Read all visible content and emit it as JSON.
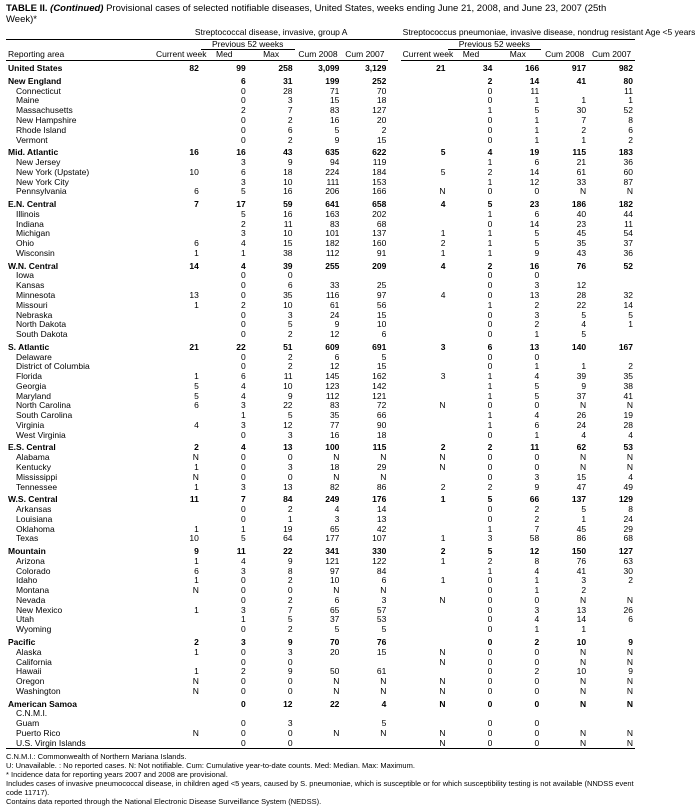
{
  "title_prefix": "TABLE II. ",
  "title_cont": "(Continued)",
  "title_rest": " Provisional cases of selected notifiable diseases, United States, weeks ending June 21, 2008, and June 23, 2007 (25th Week)*",
  "disease_a": "Streptococcal disease, invasive, group A",
  "disease_b": "Streptococcus pneumoniae, invasive disease, nondrug resistant Age <5 years",
  "hdr": {
    "area": "Reporting area",
    "current": "Current week",
    "prev": "Previous 52 weeks",
    "med": "Med",
    "max": "Max",
    "cum08": "Cum 2008",
    "cum07": "Cum 2007"
  },
  "dash": "",
  "sections": [
    {
      "head": "United States",
      "bold": true,
      "a": [
        "82",
        "99",
        "258",
        "3,099",
        "3,129"
      ],
      "b": [
        "21",
        "34",
        "166",
        "917",
        "982"
      ]
    },
    {
      "head": "New England",
      "a": [
        "",
        "6",
        "31",
        "199",
        "252"
      ],
      "b": [
        "",
        "2",
        "14",
        "41",
        "80"
      ]
    },
    {
      "rows": [
        {
          "n": "Connecticut",
          "a": [
            "",
            "0",
            "28",
            "71",
            "70"
          ],
          "b": [
            "",
            "0",
            "11",
            "",
            "11"
          ]
        },
        {
          "n": "Maine",
          "a": [
            "",
            "0",
            "3",
            "15",
            "18"
          ],
          "b": [
            "",
            "0",
            "1",
            "1",
            "1"
          ]
        },
        {
          "n": "Massachusetts",
          "a": [
            "",
            "2",
            "7",
            "83",
            "127"
          ],
          "b": [
            "",
            "1",
            "5",
            "30",
            "52"
          ]
        },
        {
          "n": "New Hampshire",
          "a": [
            "",
            "0",
            "2",
            "16",
            "20"
          ],
          "b": [
            "",
            "0",
            "1",
            "7",
            "8"
          ]
        },
        {
          "n": "Rhode Island",
          "a": [
            "",
            "0",
            "6",
            "5",
            "2"
          ],
          "b": [
            "",
            "0",
            "1",
            "2",
            "6"
          ]
        },
        {
          "n": "Vermont",
          "a": [
            "",
            "0",
            "2",
            "9",
            "15"
          ],
          "b": [
            "",
            "0",
            "1",
            "1",
            "2"
          ]
        }
      ]
    },
    {
      "head": "Mid. Atlantic",
      "a": [
        "16",
        "16",
        "43",
        "635",
        "622"
      ],
      "b": [
        "5",
        "4",
        "19",
        "115",
        "183"
      ]
    },
    {
      "rows": [
        {
          "n": "New Jersey",
          "a": [
            "",
            "3",
            "9",
            "94",
            "119"
          ],
          "b": [
            "",
            "1",
            "6",
            "21",
            "36"
          ]
        },
        {
          "n": "New York (Upstate)",
          "a": [
            "10",
            "6",
            "18",
            "224",
            "184"
          ],
          "b": [
            "5",
            "2",
            "14",
            "61",
            "60"
          ]
        },
        {
          "n": "New York City",
          "a": [
            "",
            "3",
            "10",
            "111",
            "153"
          ],
          "b": [
            "",
            "1",
            "12",
            "33",
            "87"
          ]
        },
        {
          "n": "Pennsylvania",
          "a": [
            "6",
            "5",
            "16",
            "206",
            "166"
          ],
          "b": [
            "N",
            "0",
            "0",
            "N",
            "N"
          ]
        }
      ]
    },
    {
      "head": "E.N. Central",
      "a": [
        "7",
        "17",
        "59",
        "641",
        "658"
      ],
      "b": [
        "4",
        "5",
        "23",
        "186",
        "182"
      ]
    },
    {
      "rows": [
        {
          "n": "Illinois",
          "a": [
            "",
            "5",
            "16",
            "163",
            "202"
          ],
          "b": [
            "",
            "1",
            "6",
            "40",
            "44"
          ]
        },
        {
          "n": "Indiana",
          "a": [
            "",
            "2",
            "11",
            "83",
            "68"
          ],
          "b": [
            "",
            "0",
            "14",
            "23",
            "11"
          ]
        },
        {
          "n": "Michigan",
          "a": [
            "",
            "3",
            "10",
            "101",
            "137"
          ],
          "b": [
            "1",
            "1",
            "5",
            "45",
            "54"
          ]
        },
        {
          "n": "Ohio",
          "a": [
            "6",
            "4",
            "15",
            "182",
            "160"
          ],
          "b": [
            "2",
            "1",
            "5",
            "35",
            "37"
          ]
        },
        {
          "n": "Wisconsin",
          "a": [
            "1",
            "1",
            "38",
            "112",
            "91"
          ],
          "b": [
            "1",
            "1",
            "9",
            "43",
            "36"
          ]
        }
      ]
    },
    {
      "head": "W.N. Central",
      "a": [
        "14",
        "4",
        "39",
        "255",
        "209"
      ],
      "b": [
        "4",
        "2",
        "16",
        "76",
        "52"
      ]
    },
    {
      "rows": [
        {
          "n": "Iowa",
          "a": [
            "",
            "0",
            "0",
            "",
            ""
          ],
          "b": [
            "",
            "0",
            "0",
            "",
            ""
          ]
        },
        {
          "n": "Kansas",
          "a": [
            "",
            "0",
            "6",
            "33",
            "25"
          ],
          "b": [
            "",
            "0",
            "3",
            "12",
            ""
          ]
        },
        {
          "n": "Minnesota",
          "a": [
            "13",
            "0",
            "35",
            "116",
            "97"
          ],
          "b": [
            "4",
            "0",
            "13",
            "28",
            "32"
          ]
        },
        {
          "n": "Missouri",
          "a": [
            "1",
            "2",
            "10",
            "61",
            "56"
          ],
          "b": [
            "",
            "1",
            "2",
            "22",
            "14"
          ]
        },
        {
          "n": "Nebraska",
          "a": [
            "",
            "0",
            "3",
            "24",
            "15"
          ],
          "b": [
            "",
            "0",
            "3",
            "5",
            "5"
          ]
        },
        {
          "n": "North Dakota",
          "a": [
            "",
            "0",
            "5",
            "9",
            "10"
          ],
          "b": [
            "",
            "0",
            "2",
            "4",
            "1"
          ]
        },
        {
          "n": "South Dakota",
          "a": [
            "",
            "0",
            "2",
            "12",
            "6"
          ],
          "b": [
            "",
            "0",
            "1",
            "5",
            ""
          ]
        }
      ]
    },
    {
      "head": "S. Atlantic",
      "a": [
        "21",
        "22",
        "51",
        "609",
        "691"
      ],
      "b": [
        "3",
        "6",
        "13",
        "140",
        "167"
      ]
    },
    {
      "rows": [
        {
          "n": "Delaware",
          "a": [
            "",
            "0",
            "2",
            "6",
            "5"
          ],
          "b": [
            "",
            "0",
            "0",
            "",
            ""
          ]
        },
        {
          "n": "District of Columbia",
          "a": [
            "",
            "0",
            "2",
            "12",
            "15"
          ],
          "b": [
            "",
            "0",
            "1",
            "1",
            "2"
          ]
        },
        {
          "n": "Florida",
          "a": [
            "1",
            "6",
            "11",
            "145",
            "162"
          ],
          "b": [
            "3",
            "1",
            "4",
            "39",
            "35"
          ]
        },
        {
          "n": "Georgia",
          "a": [
            "5",
            "4",
            "10",
            "123",
            "142"
          ],
          "b": [
            "",
            "1",
            "5",
            "9",
            "38"
          ]
        },
        {
          "n": "Maryland",
          "a": [
            "5",
            "4",
            "9",
            "112",
            "121"
          ],
          "b": [
            "",
            "1",
            "5",
            "37",
            "41"
          ]
        },
        {
          "n": "North Carolina",
          "a": [
            "6",
            "3",
            "22",
            "83",
            "72"
          ],
          "b": [
            "N",
            "0",
            "0",
            "N",
            "N"
          ]
        },
        {
          "n": "South Carolina",
          "a": [
            "",
            "1",
            "5",
            "35",
            "66"
          ],
          "b": [
            "",
            "1",
            "4",
            "26",
            "19"
          ]
        },
        {
          "n": "Virginia",
          "a": [
            "4",
            "3",
            "12",
            "77",
            "90"
          ],
          "b": [
            "",
            "1",
            "6",
            "24",
            "28"
          ]
        },
        {
          "n": "West Virginia",
          "a": [
            "",
            "0",
            "3",
            "16",
            "18"
          ],
          "b": [
            "",
            "0",
            "1",
            "4",
            "4"
          ]
        }
      ]
    },
    {
      "head": "E.S. Central",
      "a": [
        "2",
        "4",
        "13",
        "100",
        "115"
      ],
      "b": [
        "2",
        "2",
        "11",
        "62",
        "53"
      ]
    },
    {
      "rows": [
        {
          "n": "Alabama",
          "a": [
            "N",
            "0",
            "0",
            "N",
            "N"
          ],
          "b": [
            "N",
            "0",
            "0",
            "N",
            "N"
          ]
        },
        {
          "n": "Kentucky",
          "a": [
            "1",
            "0",
            "3",
            "18",
            "29"
          ],
          "b": [
            "N",
            "0",
            "0",
            "N",
            "N"
          ]
        },
        {
          "n": "Mississippi",
          "a": [
            "N",
            "0",
            "0",
            "N",
            "N"
          ],
          "b": [
            "",
            "0",
            "3",
            "15",
            "4"
          ]
        },
        {
          "n": "Tennessee",
          "a": [
            "1",
            "3",
            "13",
            "82",
            "86"
          ],
          "b": [
            "2",
            "2",
            "9",
            "47",
            "49"
          ]
        }
      ]
    },
    {
      "head": "W.S. Central",
      "a": [
        "11",
        "7",
        "84",
        "249",
        "176"
      ],
      "b": [
        "1",
        "5",
        "66",
        "137",
        "129"
      ]
    },
    {
      "rows": [
        {
          "n": "Arkansas",
          "a": [
            "",
            "0",
            "2",
            "4",
            "14"
          ],
          "b": [
            "",
            "0",
            "2",
            "5",
            "8"
          ]
        },
        {
          "n": "Louisiana",
          "a": [
            "",
            "0",
            "1",
            "3",
            "13"
          ],
          "b": [
            "",
            "0",
            "2",
            "1",
            "24"
          ]
        },
        {
          "n": "Oklahoma",
          "a": [
            "1",
            "1",
            "19",
            "65",
            "42"
          ],
          "b": [
            "",
            "1",
            "7",
            "45",
            "29"
          ]
        },
        {
          "n": "Texas",
          "a": [
            "10",
            "5",
            "64",
            "177",
            "107"
          ],
          "b": [
            "1",
            "3",
            "58",
            "86",
            "68"
          ]
        }
      ]
    },
    {
      "head": "Mountain",
      "a": [
        "9",
        "11",
        "22",
        "341",
        "330"
      ],
      "b": [
        "2",
        "5",
        "12",
        "150",
        "127"
      ]
    },
    {
      "rows": [
        {
          "n": "Arizona",
          "a": [
            "1",
            "4",
            "9",
            "121",
            "122"
          ],
          "b": [
            "1",
            "2",
            "8",
            "76",
            "63"
          ]
        },
        {
          "n": "Colorado",
          "a": [
            "6",
            "3",
            "8",
            "97",
            "84"
          ],
          "b": [
            "",
            "1",
            "4",
            "41",
            "30"
          ]
        },
        {
          "n": "Idaho",
          "a": [
            "1",
            "0",
            "2",
            "10",
            "6"
          ],
          "b": [
            "1",
            "0",
            "1",
            "3",
            "2"
          ]
        },
        {
          "n": "Montana",
          "a": [
            "N",
            "0",
            "0",
            "N",
            "N"
          ],
          "b": [
            "",
            "0",
            "1",
            "2",
            ""
          ]
        },
        {
          "n": "Nevada",
          "a": [
            "",
            "0",
            "2",
            "6",
            "3"
          ],
          "b": [
            "N",
            "0",
            "0",
            "N",
            "N"
          ]
        },
        {
          "n": "New Mexico",
          "a": [
            "1",
            "3",
            "7",
            "65",
            "57"
          ],
          "b": [
            "",
            "0",
            "3",
            "13",
            "26"
          ]
        },
        {
          "n": "Utah",
          "a": [
            "",
            "1",
            "5",
            "37",
            "53"
          ],
          "b": [
            "",
            "0",
            "4",
            "14",
            "6"
          ]
        },
        {
          "n": "Wyoming",
          "a": [
            "",
            "0",
            "2",
            "5",
            "5"
          ],
          "b": [
            "",
            "0",
            "1",
            "1",
            ""
          ]
        }
      ]
    },
    {
      "head": "Pacific",
      "a": [
        "2",
        "3",
        "9",
        "70",
        "76"
      ],
      "b": [
        "",
        "0",
        "2",
        "10",
        "9"
      ]
    },
    {
      "rows": [
        {
          "n": "Alaska",
          "a": [
            "1",
            "0",
            "3",
            "20",
            "15"
          ],
          "b": [
            "N",
            "0",
            "0",
            "N",
            "N"
          ]
        },
        {
          "n": "California",
          "a": [
            "",
            "0",
            "0",
            "",
            ""
          ],
          "b": [
            "N",
            "0",
            "0",
            "N",
            "N"
          ]
        },
        {
          "n": "Hawaii",
          "a": [
            "1",
            "2",
            "9",
            "50",
            "61"
          ],
          "b": [
            "",
            "0",
            "2",
            "10",
            "9"
          ]
        },
        {
          "n": "Oregon",
          "a": [
            "N",
            "0",
            "0",
            "N",
            "N"
          ],
          "b": [
            "N",
            "0",
            "0",
            "N",
            "N"
          ]
        },
        {
          "n": "Washington",
          "a": [
            "N",
            "0",
            "0",
            "N",
            "N"
          ],
          "b": [
            "N",
            "0",
            "0",
            "N",
            "N"
          ]
        }
      ]
    },
    {
      "head": "American Samoa",
      "a": [
        "",
        "0",
        "12",
        "22",
        "4"
      ],
      "b": [
        "N",
        "0",
        "0",
        "N",
        "N"
      ]
    },
    {
      "rows": [
        {
          "n": "C.N.M.I.",
          "a": [
            "",
            "",
            "",
            "",
            ""
          ],
          "b": [
            "",
            "",
            "",
            "",
            ""
          ]
        },
        {
          "n": "Guam",
          "a": [
            "",
            "0",
            "3",
            "",
            "5"
          ],
          "b": [
            "",
            "0",
            "0",
            "",
            ""
          ]
        },
        {
          "n": "Puerto Rico",
          "a": [
            "N",
            "0",
            "0",
            "N",
            "N"
          ],
          "b": [
            "N",
            "0",
            "0",
            "N",
            "N"
          ]
        },
        {
          "n": "U.S. Virgin Islands",
          "a": [
            "",
            "0",
            "0",
            "",
            ""
          ],
          "b": [
            "N",
            "0",
            "0",
            "N",
            "N"
          ]
        }
      ]
    }
  ],
  "footnotes": [
    "C.N.M.I.: Commonwealth of Northern Mariana Islands.",
    "U: Unavailable.   : No reported cases.   N: Not notifiable.   Cum: Cumulative year-to-date counts.   Med: Median.   Max: Maximum.",
    "* Incidence data for reporting years 2007 and 2008 are provisional.",
    " Includes cases of invasive pneumococcal disease, in children aged <5 years, caused by S. pneumoniae, which is susceptible or for which susceptibility testing is not available (NNDSS event code 11717).",
    " Contains data reported through the National Electronic Disease Surveillance System (NEDSS)."
  ],
  "sup_map": {
    "Maine": "",
    "Rhode Island": "",
    "Vermont": "",
    "Nebraska": "",
    "Maryland": "",
    "South Carolina": "",
    "Virginia": "",
    "Alabama": "",
    "Tennessee": "",
    "Arkansas": "",
    "Texas": "",
    "Idaho": "",
    "Montana": "",
    "Nevada": "",
    "New Mexico": "",
    "Wyoming": "",
    "Oregon": ""
  }
}
